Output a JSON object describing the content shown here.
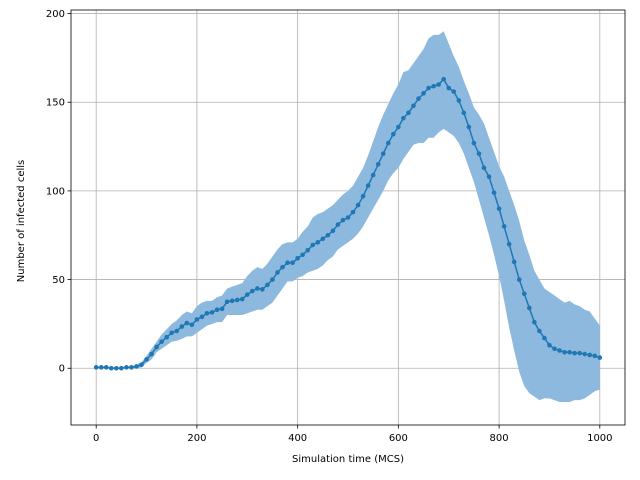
{
  "chart_data": {
    "type": "line",
    "title": "",
    "xlabel": "Simulation time (MCS)",
    "ylabel": "Number of infected cells",
    "xlim": [
      -50,
      1050
    ],
    "ylim": [
      -32,
      202
    ],
    "xticks": [
      0,
      200,
      400,
      600,
      800,
      1000
    ],
    "yticks": [
      0,
      50,
      100,
      150,
      200
    ],
    "grid": true,
    "legend": "none",
    "colors": {
      "line": "#1f77b4",
      "band": "#8cb9dd"
    },
    "series": [
      {
        "x": [
          0,
          10,
          20,
          30,
          40,
          50,
          60,
          70,
          80,
          90,
          100,
          110,
          120,
          130,
          140,
          150,
          160,
          170,
          180,
          190,
          200,
          210,
          220,
          230,
          240,
          250,
          260,
          270,
          280,
          290,
          300,
          310,
          320,
          330,
          340,
          350,
          360,
          370,
          380,
          390,
          400,
          410,
          420,
          430,
          440,
          450,
          460,
          470,
          480,
          490,
          500,
          510,
          520,
          530,
          540,
          550,
          560,
          570,
          580,
          590,
          600,
          610,
          620,
          630,
          640,
          650,
          660,
          670,
          680,
          690,
          700,
          710,
          720,
          730,
          740,
          750,
          760,
          770,
          780,
          790,
          800,
          810,
          820,
          830,
          840,
          850,
          860,
          870,
          880,
          890,
          900,
          910,
          920,
          930,
          940,
          950,
          960,
          970,
          980,
          990,
          1000
        ],
        "y": [
          0.5,
          0.5,
          0.5,
          0,
          0,
          0,
          0.5,
          0.5,
          1,
          2,
          5,
          8,
          12,
          15,
          17.5,
          20,
          21,
          23.5,
          25.5,
          24.5,
          27.5,
          29,
          31,
          31.5,
          33,
          33.5,
          37.5,
          38,
          38.5,
          39,
          41.5,
          43.5,
          45,
          44.5,
          47,
          50,
          54,
          57,
          59.5,
          59.5,
          62,
          64,
          66.5,
          69.5,
          71,
          73,
          75,
          77.5,
          81,
          83.5,
          85,
          88,
          92,
          97,
          103,
          109,
          115,
          121,
          127,
          132,
          136,
          141,
          144,
          148,
          152,
          155,
          158,
          159,
          160,
          163,
          158,
          156,
          151,
          144,
          136,
          127,
          121,
          113,
          108,
          99,
          90,
          80,
          70,
          60,
          50,
          42,
          34,
          26,
          21,
          17,
          13,
          11,
          10,
          9,
          9,
          8.5,
          8.5,
          8,
          7.5,
          7,
          6
        ],
        "upper": [
          1,
          1,
          1,
          0.5,
          0.5,
          0.5,
          1,
          1,
          2,
          3.5,
          7,
          11,
          15,
          19,
          22,
          25,
          27,
          30,
          32,
          31,
          35,
          37,
          38,
          38,
          40,
          41,
          45,
          46,
          47,
          48,
          52,
          55,
          57,
          56,
          59,
          63,
          67,
          70,
          71,
          71,
          73,
          77,
          80,
          85,
          87,
          88,
          90,
          92,
          95,
          98,
          100,
          103,
          108,
          113,
          120,
          128,
          136,
          143,
          149,
          155,
          160,
          167,
          168,
          172,
          176,
          180,
          186,
          188,
          188,
          190,
          183,
          176,
          170,
          162,
          155,
          147,
          143,
          138,
          130,
          122,
          114,
          108,
          100,
          92,
          83,
          72,
          64,
          55,
          50,
          45,
          43,
          41,
          39,
          37,
          38,
          36,
          35,
          33,
          32,
          28,
          24
        ],
        "lower": [
          0,
          0,
          0,
          0,
          0,
          -0.5,
          0,
          0,
          0,
          0.5,
          3,
          5,
          9,
          11,
          13,
          15,
          15.5,
          16.5,
          18,
          18,
          20,
          22,
          24,
          25,
          26,
          26,
          30,
          30,
          30,
          30,
          31,
          32,
          33,
          33,
          35,
          37,
          41,
          45,
          49,
          49,
          51,
          52,
          54,
          55,
          56,
          58,
          61,
          63,
          67,
          69,
          71,
          73,
          76,
          80,
          85,
          90,
          95,
          100,
          106,
          110,
          113,
          118,
          122,
          126,
          127,
          127,
          130,
          130,
          133,
          135,
          133,
          131,
          127,
          121,
          113,
          105,
          95,
          85,
          75,
          64,
          52,
          38,
          23,
          10,
          -2,
          -10,
          -14,
          -16,
          -18,
          -17,
          -17,
          -18,
          -19,
          -19,
          -19,
          -18,
          -18,
          -17,
          -15,
          -13,
          -12
        ]
      }
    ]
  }
}
